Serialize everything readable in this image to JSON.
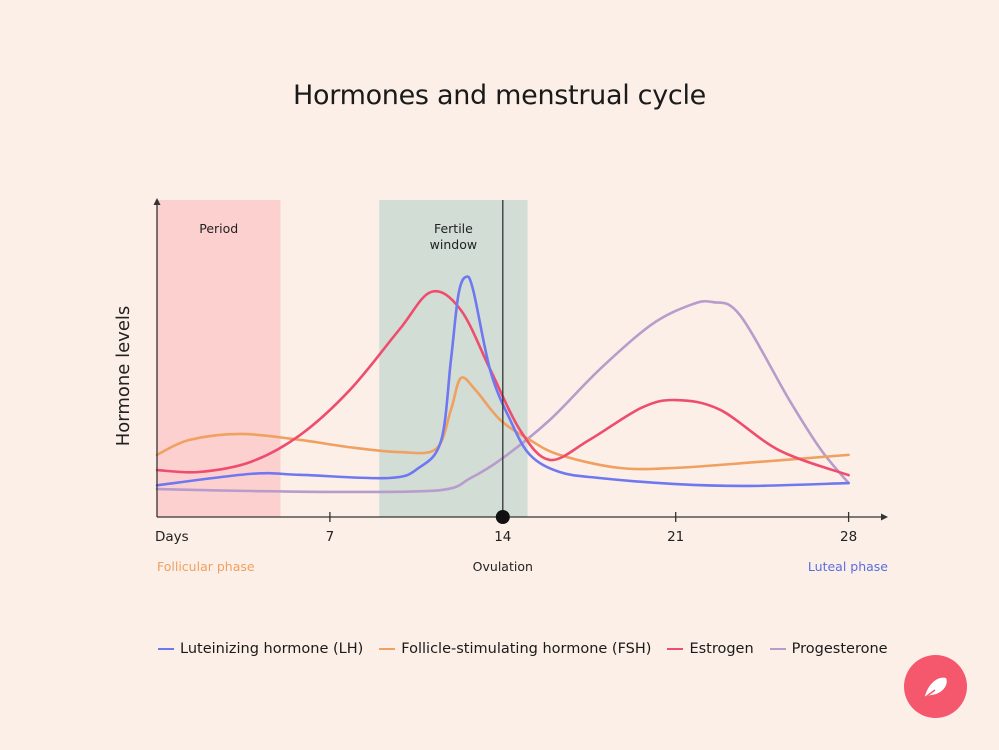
{
  "chart_data": {
    "type": "line",
    "title": "Hormones and menstrual cycle",
    "xlabel": "Days",
    "ylabel": "Hormone levels",
    "xlim": [
      0,
      29.5
    ],
    "ylim": [
      0,
      100
    ],
    "x_ticks": [
      {
        "value": 7,
        "label": "7"
      },
      {
        "value": 14,
        "label": "14"
      },
      {
        "value": 21,
        "label": "21"
      },
      {
        "value": 28,
        "label": "28"
      }
    ],
    "grid": false,
    "legend": "bottom",
    "bands": [
      {
        "label": "Period",
        "from": 0,
        "to": 5,
        "color": "#fdd0d0"
      },
      {
        "label": "Fertile window",
        "from": 9,
        "to": 15,
        "color": "#d2ddd5"
      }
    ],
    "marker": {
      "label": "Ovulation",
      "x": 14
    },
    "phase_labels": {
      "left": "Follicular phase",
      "left_color": "#f0a060",
      "center": "Ovulation",
      "right": "Luteal phase",
      "right_color": "#5b6ee0"
    },
    "series": [
      {
        "name": "Luteinizing hormone (LH)",
        "color": "#6f78f0",
        "points": [
          [
            0,
            10
          ],
          [
            3.8,
            13.6
          ],
          [
            5.8,
            13.3
          ],
          [
            9.4,
            12.3
          ],
          [
            10.6,
            15.5
          ],
          [
            11.5,
            24
          ],
          [
            11.9,
            49.5
          ],
          [
            12.2,
            70
          ],
          [
            12.5,
            75.7
          ],
          [
            12.8,
            71.6
          ],
          [
            13.5,
            46
          ],
          [
            14.3,
            30.6
          ],
          [
            15.1,
            19.6
          ],
          [
            16.3,
            14.2
          ],
          [
            17.9,
            12.3
          ],
          [
            21,
            10.4
          ],
          [
            24,
            9.8
          ],
          [
            28,
            10.7
          ]
        ]
      },
      {
        "name": "Follicle-stimulating hormone (FSH)",
        "color": "#f0a060",
        "points": [
          [
            0,
            19.6
          ],
          [
            1.3,
            24.3
          ],
          [
            3.4,
            26.2
          ],
          [
            5.8,
            24.3
          ],
          [
            7.8,
            22
          ],
          [
            9.8,
            20.5
          ],
          [
            11.3,
            21.5
          ],
          [
            11.9,
            33.8
          ],
          [
            12.3,
            43.8
          ],
          [
            12.9,
            40
          ],
          [
            13.9,
            30.6
          ],
          [
            15.1,
            24.3
          ],
          [
            16.3,
            19.6
          ],
          [
            18.7,
            15.5
          ],
          [
            21,
            15.5
          ],
          [
            24.4,
            17.4
          ],
          [
            28,
            19.6
          ]
        ]
      },
      {
        "name": "Estrogen",
        "color": "#ee4d6e",
        "points": [
          [
            0,
            14.8
          ],
          [
            1.7,
            14.2
          ],
          [
            3.8,
            17.4
          ],
          [
            5.8,
            25.9
          ],
          [
            7.8,
            40
          ],
          [
            9.8,
            59
          ],
          [
            11.1,
            71
          ],
          [
            12.3,
            65.3
          ],
          [
            13.5,
            46.4
          ],
          [
            14.7,
            27.4
          ],
          [
            15.9,
            18
          ],
          [
            17.5,
            24.3
          ],
          [
            19.6,
            34.4
          ],
          [
            21,
            36.9
          ],
          [
            22.8,
            33.8
          ],
          [
            25.2,
            21
          ],
          [
            28,
            13.2
          ]
        ]
      },
      {
        "name": "Progesterone",
        "color": "#b79ccc",
        "points": [
          [
            0,
            8.8
          ],
          [
            3.8,
            8.2
          ],
          [
            7.8,
            7.9
          ],
          [
            11.5,
            8.5
          ],
          [
            12.7,
            12.3
          ],
          [
            14,
            18.6
          ],
          [
            15.9,
            30.6
          ],
          [
            17.9,
            46.4
          ],
          [
            20,
            60.6
          ],
          [
            21.6,
            66.9
          ],
          [
            22.5,
            67.8
          ],
          [
            23.6,
            63.7
          ],
          [
            25.6,
            36.9
          ],
          [
            26.9,
            21
          ],
          [
            28,
            10.7
          ]
        ]
      }
    ]
  }
}
